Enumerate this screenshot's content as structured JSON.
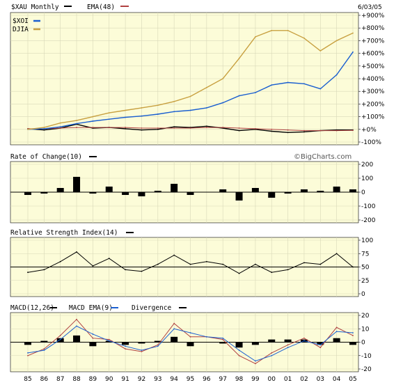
{
  "header": {
    "symbol_label": "$XAU Monthly",
    "ema_label": "EMA(48)",
    "date": "6/03/05",
    "watermark": "©BigCharts.com"
  },
  "legend": {
    "xoi": "$XOI",
    "djia": "DJIA"
  },
  "colors": {
    "background": "#fcfcd8",
    "grid": "#d8d8b8",
    "xau": "#000000",
    "ema": "#b04040",
    "xoi": "#1a5fd0",
    "djia": "#c8a040",
    "macd": "#000000",
    "macd_ema": "#1a5fd0",
    "divergence": "#b04040"
  },
  "panels": {
    "roc_label": "Rate of Change(10)",
    "rsi_label": "Relative Strength Index(14)",
    "macd_label": "MACD(12,26)",
    "macd_ema_label": "MACD EMA(9)",
    "divergence_label": "Divergence"
  },
  "chart_data": [
    {
      "type": "line",
      "title": "$XAU Monthly",
      "x": [
        "85",
        "86",
        "87",
        "88",
        "89",
        "90",
        "91",
        "92",
        "93",
        "94",
        "95",
        "96",
        "97",
        "98",
        "99",
        "00",
        "01",
        "02",
        "03",
        "04",
        "05"
      ],
      "y_ticks": [
        "+900%",
        "+800%",
        "+700%",
        "+600%",
        "+500%",
        "+400%",
        "+300%",
        "+200%",
        "+100%",
        "+0%",
        "-100%"
      ],
      "ylim": [
        -100,
        900
      ],
      "series": [
        {
          "name": "$XAU",
          "values": [
            5,
            -5,
            10,
            40,
            10,
            15,
            5,
            -5,
            0,
            20,
            15,
            25,
            10,
            -10,
            0,
            -15,
            -25,
            -20,
            -10,
            -5,
            -5
          ]
        },
        {
          "name": "EMA(48)",
          "values": [
            5,
            5,
            10,
            15,
            15,
            15,
            15,
            10,
            10,
            10,
            10,
            15,
            15,
            10,
            5,
            0,
            -5,
            -10,
            -10,
            -10,
            -8
          ]
        },
        {
          "name": "$XOI",
          "values": [
            0,
            5,
            20,
            45,
            65,
            80,
            95,
            105,
            120,
            140,
            150,
            170,
            210,
            265,
            290,
            350,
            370,
            360,
            320,
            430,
            610
          ]
        },
        {
          "name": "DJIA",
          "values": [
            0,
            15,
            50,
            70,
            100,
            130,
            150,
            170,
            190,
            220,
            260,
            330,
            400,
            560,
            730,
            780,
            780,
            720,
            620,
            700,
            760
          ]
        }
      ]
    },
    {
      "type": "area",
      "title": "Rate of Change(10)",
      "x": [
        "85",
        "86",
        "87",
        "88",
        "89",
        "90",
        "91",
        "92",
        "93",
        "94",
        "95",
        "96",
        "97",
        "98",
        "99",
        "00",
        "01",
        "02",
        "03",
        "04",
        "05"
      ],
      "y_ticks": [
        "200",
        "100",
        "0",
        "-100",
        "-200"
      ],
      "ylim": [
        -200,
        200
      ],
      "series": [
        {
          "name": "Rate of Change(10)",
          "values": [
            -20,
            -10,
            30,
            110,
            -10,
            40,
            -20,
            -30,
            10,
            60,
            -20,
            0,
            20,
            -60,
            30,
            -40,
            -10,
            20,
            10,
            40,
            20
          ]
        }
      ]
    },
    {
      "type": "line",
      "title": "Relative Strength Index(14)",
      "x": [
        "85",
        "86",
        "87",
        "88",
        "89",
        "90",
        "91",
        "92",
        "93",
        "94",
        "95",
        "96",
        "97",
        "98",
        "99",
        "00",
        "01",
        "02",
        "03",
        "04",
        "05"
      ],
      "y_ticks": [
        "100",
        "75",
        "50",
        "25",
        "0"
      ],
      "ylim": [
        0,
        100
      ],
      "series": [
        {
          "name": "Relative Strength Index(14)",
          "values": [
            40,
            45,
            60,
            78,
            52,
            66,
            45,
            42,
            55,
            72,
            55,
            60,
            55,
            38,
            55,
            40,
            45,
            58,
            55,
            75,
            50
          ]
        }
      ]
    },
    {
      "type": "line",
      "title": "MACD(12,26)",
      "x": [
        "85",
        "86",
        "87",
        "88",
        "89",
        "90",
        "91",
        "92",
        "93",
        "94",
        "95",
        "96",
        "97",
        "98",
        "99",
        "00",
        "01",
        "02",
        "03",
        "04",
        "05"
      ],
      "y_ticks": [
        "20",
        "10",
        "0",
        "-10",
        "-20"
      ],
      "ylim": [
        -20,
        20
      ],
      "series": [
        {
          "name": "MACD(12,26)",
          "values": [
            -10,
            -5,
            5,
            17,
            3,
            2,
            -5,
            -7,
            -2,
            14,
            4,
            4,
            2,
            -10,
            -16,
            -8,
            -2,
            3,
            -4,
            11,
            5
          ]
        },
        {
          "name": "MACD EMA(9)",
          "values": [
            -8,
            -6,
            2,
            12,
            6,
            1,
            -3,
            -6,
            -3,
            10,
            7,
            4,
            3,
            -6,
            -14,
            -10,
            -4,
            1,
            -2,
            8,
            7
          ]
        },
        {
          "name": "Divergence",
          "values": [
            -2,
            1,
            3,
            5,
            -3,
            1,
            -2,
            -1,
            1,
            4,
            -3,
            0,
            -1,
            -4,
            -2,
            2,
            2,
            2,
            -2,
            3,
            -2
          ]
        }
      ]
    }
  ]
}
